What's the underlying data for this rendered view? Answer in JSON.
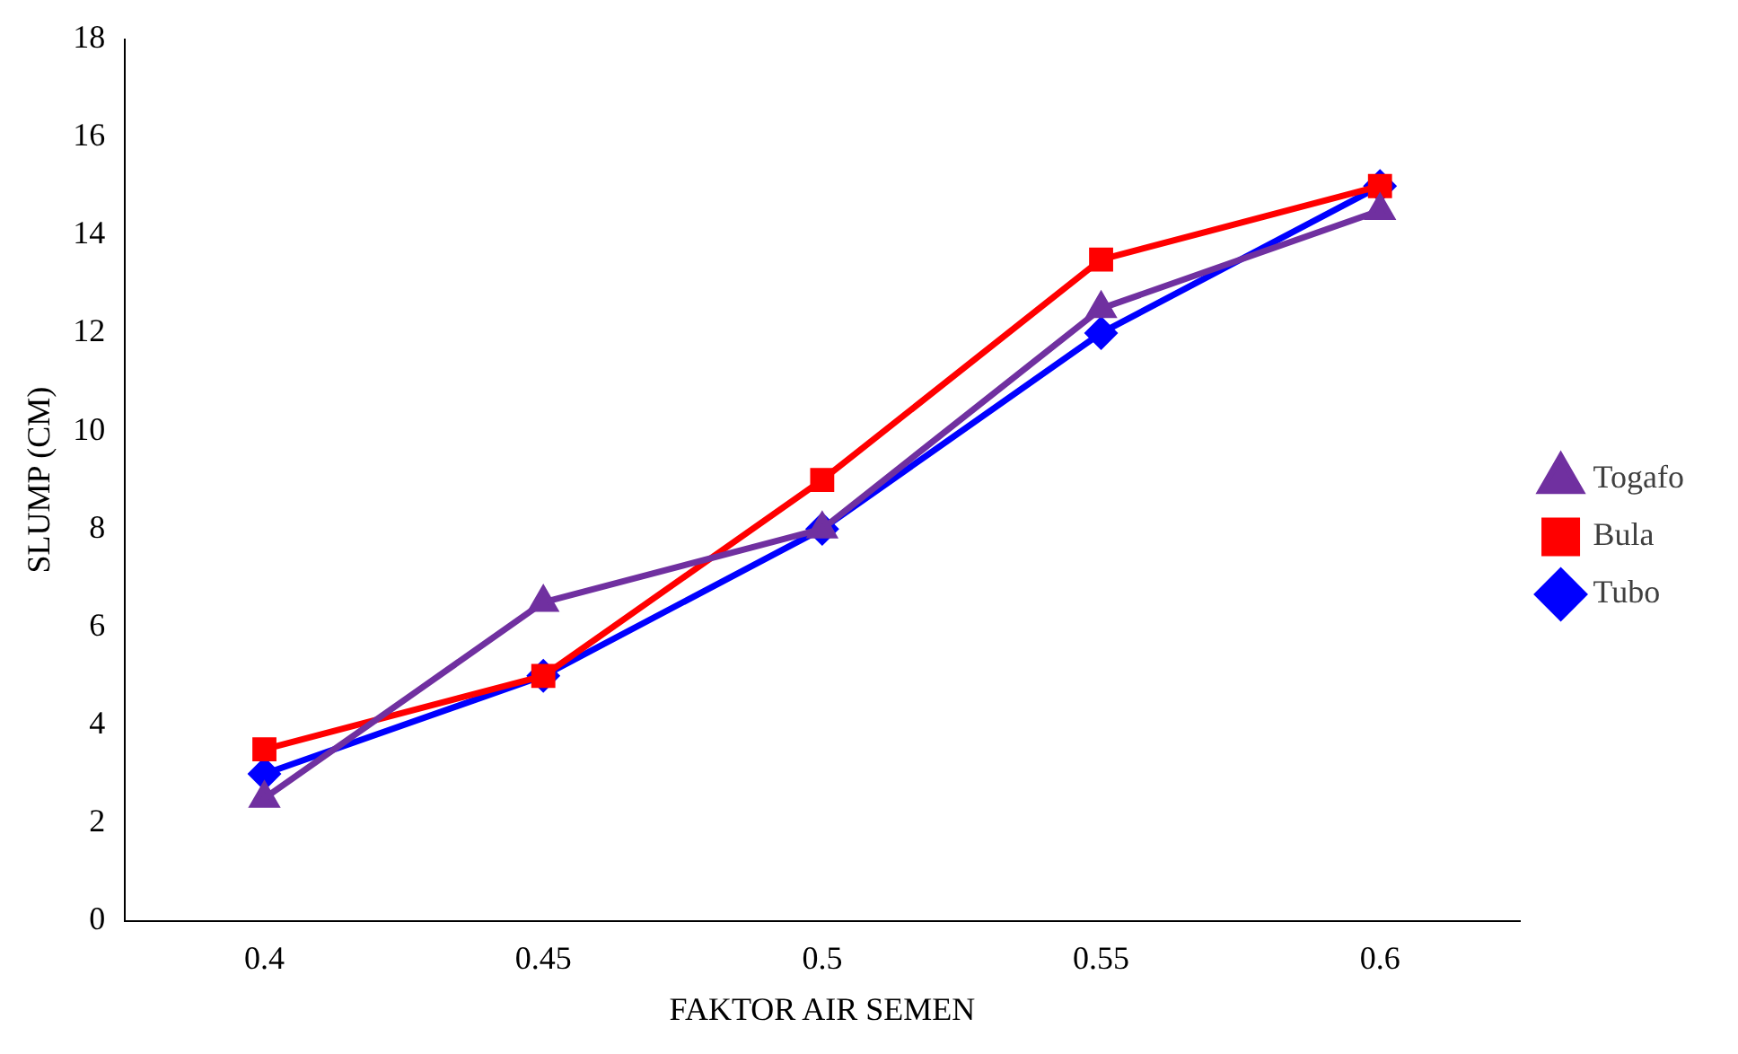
{
  "chart_data": {
    "type": "line",
    "xlabel": "FAKTOR AIR SEMEN",
    "ylabel": "SLUMP (CM)",
    "categories": [
      "0.4",
      "0.45",
      "0.5",
      "0.55",
      "0.6"
    ],
    "series": [
      {
        "name": "Tubo",
        "color": "#0000ff",
        "marker": "diamond",
        "values": [
          3,
          5,
          8,
          12,
          15
        ]
      },
      {
        "name": "Bula",
        "color": "#ff0000",
        "marker": "square",
        "values": [
          3.5,
          5,
          9,
          13.5,
          15
        ]
      },
      {
        "name": "Togafo",
        "color": "#7030a0",
        "marker": "triangle",
        "values": [
          2.5,
          6.5,
          8,
          12.5,
          14.5
        ]
      }
    ],
    "ylim": [
      0,
      18
    ],
    "yticks": [
      0,
      2,
      4,
      6,
      8,
      10,
      12,
      14,
      16,
      18
    ],
    "grid": false,
    "legend": "right",
    "line_style": "solid"
  }
}
